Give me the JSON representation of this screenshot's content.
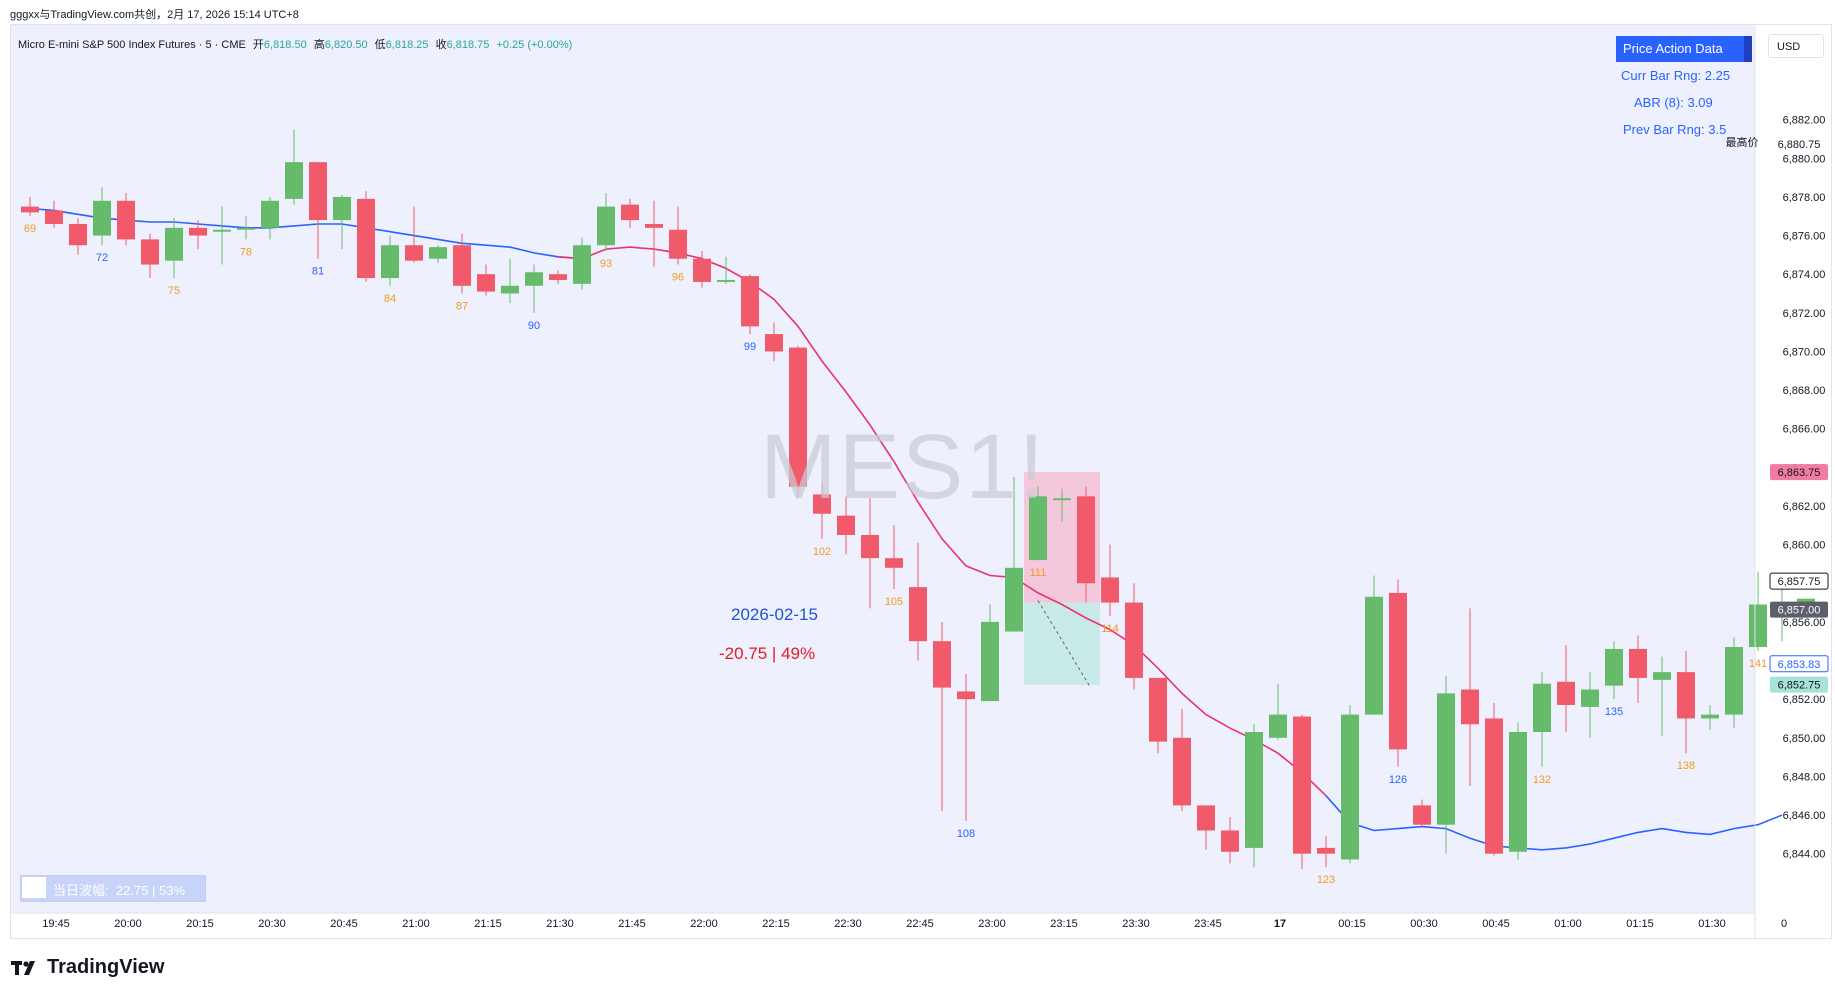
{
  "top_info": "gggxx与TradingView.com共创，2月 17, 2026 15:14 UTC+8",
  "symbol_line": {
    "name": "Micro E-mini S&P 500 Index Futures · 5 · CME",
    "open_label": "开",
    "open": "6,818.50",
    "high_label": "高",
    "high": "6,820.50",
    "low_label": "低",
    "low": "6,818.25",
    "close_label": "收",
    "close": "6,818.75",
    "change": "+0.25 (+0.00%)"
  },
  "price_action_panel": {
    "title": "Price Action Data",
    "curr_bar_range": "Curr Bar Rng: 2.25",
    "abr": "ABR (8): 3.09",
    "prev_bar_range": "Prev Bar Rng: 3.5"
  },
  "currency": "USD",
  "watermark": "MES1!",
  "annotations": {
    "date": "2026-02-15",
    "change": "-20.75 | 49%"
  },
  "daily_range": {
    "label": "当日波幅:",
    "value": "22.75 | 53%"
  },
  "high_marker_label": "最高价",
  "logo_text": "TradingView",
  "colors": {
    "up": "#66bb6a",
    "down": "#f05a6b",
    "ma_down": "#e8346e",
    "ma_up": "#2962ff",
    "chart_bg": "#eef1fd",
    "bar_num_orange": "#f59a1f",
    "bar_num_blue": "#2962ff"
  },
  "chart_data": {
    "type": "candlestick",
    "ylim": [
      6843,
      6882.5
    ],
    "y_ticks": [
      "6,844.00",
      "6,846.00",
      "6,848.00",
      "6,850.00",
      "6,852.00",
      "6,854.00",
      "6,856.00",
      "6,858.00",
      "6,860.00",
      "6,862.00",
      "6,864.00",
      "6,866.00",
      "6,868.00",
      "6,870.00",
      "6,872.00",
      "6,874.00",
      "6,876.00",
      "6,878.00",
      "6,880.00",
      "6,882.00"
    ],
    "x_tick_labels": [
      {
        "label": "19:45",
        "i": 1
      },
      {
        "label": "20:00",
        "i": 4
      },
      {
        "label": "20:15",
        "i": 7
      },
      {
        "label": "20:30",
        "i": 10
      },
      {
        "label": "20:45",
        "i": 13
      },
      {
        "label": "21:00",
        "i": 16
      },
      {
        "label": "21:15",
        "i": 19
      },
      {
        "label": "21:30",
        "i": 22
      },
      {
        "label": "21:45",
        "i": 25
      },
      {
        "label": "22:00",
        "i": 28
      },
      {
        "label": "22:15",
        "i": 31
      },
      {
        "label": "22:30",
        "i": 34
      },
      {
        "label": "22:45",
        "i": 37
      },
      {
        "label": "23:00",
        "i": 40
      },
      {
        "label": "23:15",
        "i": 43
      },
      {
        "label": "23:30",
        "i": 46
      },
      {
        "label": "23:45",
        "i": 49
      },
      {
        "label": "17",
        "i": 52
      },
      {
        "label": "00:15",
        "i": 55
      },
      {
        "label": "00:30",
        "i": 58
      },
      {
        "label": "00:45",
        "i": 61
      },
      {
        "label": "01:00",
        "i": 64
      },
      {
        "label": "01:15",
        "i": 67
      },
      {
        "label": "01:30",
        "i": 70
      },
      {
        "label": "0",
        "i": 73
      }
    ],
    "candles": [
      [
        6877.5,
        6878.0,
        6877.0,
        6877.2
      ],
      [
        6877.3,
        6877.8,
        6876.4,
        6876.6
      ],
      [
        6876.6,
        6876.9,
        6875.0,
        6875.5
      ],
      [
        6876.0,
        6878.5,
        6875.5,
        6877.8
      ],
      [
        6877.8,
        6878.2,
        6875.5,
        6875.8
      ],
      [
        6875.8,
        6876.1,
        6873.8,
        6874.5
      ],
      [
        6874.7,
        6876.9,
        6873.8,
        6876.4
      ],
      [
        6876.4,
        6876.8,
        6875.3,
        6876.0
      ],
      [
        6876.2,
        6877.5,
        6874.5,
        6876.3
      ],
      [
        6876.3,
        6877.0,
        6875.8,
        6876.4
      ],
      [
        6876.4,
        6878.0,
        6875.8,
        6877.8
      ],
      [
        6877.9,
        6881.5,
        6877.6,
        6879.8
      ],
      [
        6879.8,
        6879.8,
        6874.8,
        6876.8
      ],
      [
        6876.8,
        6878.1,
        6875.3,
        6878.0
      ],
      [
        6877.9,
        6878.3,
        6873.6,
        6873.8
      ],
      [
        6873.8,
        6876.0,
        6873.4,
        6875.5
      ],
      [
        6875.5,
        6877.5,
        6874.6,
        6874.7
      ],
      [
        6874.8,
        6875.5,
        6874.6,
        6875.4
      ],
      [
        6875.5,
        6876.1,
        6873.0,
        6873.4
      ],
      [
        6874.0,
        6874.5,
        6872.9,
        6873.1
      ],
      [
        6873.0,
        6874.8,
        6872.5,
        6873.4
      ],
      [
        6873.4,
        6874.5,
        6872.0,
        6874.1
      ],
      [
        6874.0,
        6874.2,
        6873.5,
        6873.7
      ],
      [
        6873.5,
        6875.9,
        6873.2,
        6875.5
      ],
      [
        6875.5,
        6878.2,
        6875.2,
        6877.5
      ],
      [
        6877.6,
        6877.9,
        6876.4,
        6876.8
      ],
      [
        6876.6,
        6877.8,
        6874.4,
        6876.4
      ],
      [
        6876.3,
        6877.5,
        6874.5,
        6874.8
      ],
      [
        6874.8,
        6875.2,
        6873.3,
        6873.6
      ],
      [
        6873.6,
        6874.9,
        6873.5,
        6873.7
      ],
      [
        6873.9,
        6874.0,
        6870.9,
        6871.3
      ],
      [
        6870.9,
        6871.5,
        6869.5,
        6870.0
      ],
      [
        6870.2,
        6870.3,
        6862.4,
        6863.0
      ],
      [
        6862.6,
        6863.2,
        6860.3,
        6861.6
      ],
      [
        6861.5,
        6862.5,
        6859.5,
        6860.5
      ],
      [
        6860.5,
        6862.4,
        6856.7,
        6859.3
      ],
      [
        6859.3,
        6861.0,
        6857.7,
        6858.8
      ],
      [
        6857.8,
        6860.1,
        6854.0,
        6855.0
      ],
      [
        6855.0,
        6856.0,
        6846.2,
        6852.6
      ],
      [
        6852.4,
        6853.3,
        6845.7,
        6852.0
      ],
      [
        6851.9,
        6856.9,
        6851.9,
        6856.0
      ],
      [
        6855.5,
        6863.5,
        6855.5,
        6858.8
      ],
      [
        6859.2,
        6863.0,
        6859.2,
        6862.5
      ],
      [
        6862.3,
        6862.9,
        6861.2,
        6862.4
      ],
      [
        6862.5,
        6863.0,
        6857.0,
        6858.0
      ],
      [
        6858.3,
        6860.0,
        6856.3,
        6857.0
      ],
      [
        6857.0,
        6858.0,
        6852.5,
        6853.1
      ],
      [
        6853.1,
        6853.1,
        6849.2,
        6849.8
      ],
      [
        6850.0,
        6851.5,
        6846.2,
        6846.5
      ],
      [
        6846.5,
        6846.5,
        6844.2,
        6845.2
      ],
      [
        6845.2,
        6845.9,
        6843.5,
        6844.1
      ],
      [
        6844.3,
        6850.7,
        6843.3,
        6850.3
      ],
      [
        6850.0,
        6852.8,
        6849.9,
        6851.2
      ],
      [
        6851.1,
        6851.2,
        6843.2,
        6844.0
      ],
      [
        6844.3,
        6844.9,
        6843.3,
        6844.0
      ],
      [
        6843.7,
        6851.7,
        6843.5,
        6851.2
      ],
      [
        6851.2,
        6858.4,
        6851.2,
        6857.3
      ],
      [
        6857.5,
        6858.2,
        6848.5,
        6849.4
      ],
      [
        6846.5,
        6846.8,
        6845.4,
        6845.5
      ],
      [
        6845.5,
        6853.2,
        6844.0,
        6852.3
      ],
      [
        6852.5,
        6856.7,
        6847.5,
        6850.7
      ],
      [
        6851.0,
        6851.8,
        6843.9,
        6844.0
      ],
      [
        6844.1,
        6850.8,
        6843.7,
        6850.3
      ],
      [
        6850.3,
        6853.4,
        6848.5,
        6852.8
      ],
      [
        6852.9,
        6854.8,
        6850.3,
        6851.7
      ],
      [
        6851.6,
        6853.4,
        6850.0,
        6852.5
      ],
      [
        6852.7,
        6855.0,
        6852.0,
        6854.6
      ],
      [
        6854.6,
        6855.3,
        6851.8,
        6853.1
      ],
      [
        6853.0,
        6854.2,
        6850.1,
        6853.4
      ],
      [
        6853.4,
        6854.5,
        6849.2,
        6851.0
      ],
      [
        6851.0,
        6851.7,
        6850.4,
        6851.2
      ],
      [
        6851.2,
        6855.2,
        6850.5,
        6854.7
      ],
      [
        6854.7,
        6858.6,
        6854.5,
        6856.9
      ],
      [
        6856.7,
        6857.9,
        6855.0,
        6857.0
      ],
      [
        6857.0,
        6857.2,
        6856.9,
        6857.2
      ]
    ],
    "ma_values": [
      6877.4,
      6877.3,
      6877.1,
      6876.9,
      6876.8,
      6876.7,
      6876.7,
      6876.6,
      6876.5,
      6876.4,
      6876.4,
      6876.5,
      6876.6,
      6876.6,
      6876.4,
      6876.2,
      6876.0,
      6875.8,
      6875.6,
      6875.5,
      6875.4,
      6875.1,
      6874.9,
      6874.8,
      6875.3,
      6875.4,
      6875.3,
      6875.1,
      6874.8,
      6874.3,
      6873.6,
      6872.7,
      6871.3,
      6869.5,
      6867.9,
      6866.2,
      6864.3,
      6862.2,
      6860.3,
      6858.9,
      6858.4,
      6858.3,
      6857.5,
      6856.9,
      6856.2,
      6855.6,
      6854.8,
      6853.6,
      6852.3,
      6851.2,
      6850.5,
      6849.9,
      6849.2,
      6848.2,
      6847.0,
      6845.6,
      6845.2,
      6845.3,
      6845.4,
      6845.3,
      6844.8,
      6844.4,
      6844.3,
      6844.2,
      6844.3,
      6844.5,
      6844.8,
      6845.1,
      6845.3,
      6845.1,
      6845.0,
      6845.3,
      6845.5,
      6846.0
    ],
    "bar_numbers": [
      {
        "i": 0,
        "label": "69",
        "side": "below",
        "color": "orange"
      },
      {
        "i": 3,
        "label": "72",
        "side": "below",
        "color": "blue"
      },
      {
        "i": 6,
        "label": "75",
        "side": "below",
        "color": "orange"
      },
      {
        "i": 9,
        "label": "78",
        "side": "below",
        "color": "orange"
      },
      {
        "i": 12,
        "label": "81",
        "side": "below",
        "color": "blue"
      },
      {
        "i": 15,
        "label": "84",
        "side": "below",
        "color": "orange"
      },
      {
        "i": 18,
        "label": "87",
        "side": "below",
        "color": "orange"
      },
      {
        "i": 21,
        "label": "90",
        "side": "below",
        "color": "blue"
      },
      {
        "i": 24,
        "label": "93",
        "side": "below",
        "color": "orange"
      },
      {
        "i": 27,
        "label": "96",
        "side": "below",
        "color": "orange"
      },
      {
        "i": 30,
        "label": "99",
        "side": "below",
        "color": "blue"
      },
      {
        "i": 33,
        "label": "102",
        "side": "below",
        "color": "orange"
      },
      {
        "i": 36,
        "label": "105",
        "side": "below",
        "color": "orange"
      },
      {
        "i": 39,
        "label": "108",
        "side": "below",
        "color": "blue"
      },
      {
        "i": 42,
        "label": "111",
        "side": "below",
        "color": "orange"
      },
      {
        "i": 45,
        "label": "114",
        "side": "below",
        "color": "orange"
      },
      {
        "i": 54,
        "label": "123",
        "side": "below",
        "color": "orange"
      },
      {
        "i": 57,
        "label": "126",
        "side": "below",
        "color": "blue"
      },
      {
        "i": 63,
        "label": "132",
        "side": "below",
        "color": "orange"
      },
      {
        "i": 66,
        "label": "135",
        "side": "below",
        "color": "blue"
      },
      {
        "i": 69,
        "label": "138",
        "side": "below",
        "color": "orange"
      },
      {
        "i": 72,
        "label": "141",
        "side": "below",
        "color": "orange"
      }
    ],
    "price_labels": [
      {
        "value": 6880.75,
        "label": "6,880.75",
        "style": "plain-high"
      },
      {
        "value": 6863.75,
        "label": "6,863.75",
        "style": "pink"
      },
      {
        "value": 6857.75,
        "label": "6,857.75",
        "style": "outline"
      },
      {
        "value": 6857.0,
        "label": "6,857.00",
        "style": "dark"
      },
      {
        "value": 6853.83,
        "label": "6,853.83",
        "style": "blue-outline"
      },
      {
        "value": 6852.75,
        "label": "6,852.75",
        "style": "teal"
      }
    ],
    "position_box": {
      "i_start": 42,
      "i_end": 44,
      "top": 6863.75,
      "entry": 6857.0,
      "bottom": 6852.75
    }
  }
}
